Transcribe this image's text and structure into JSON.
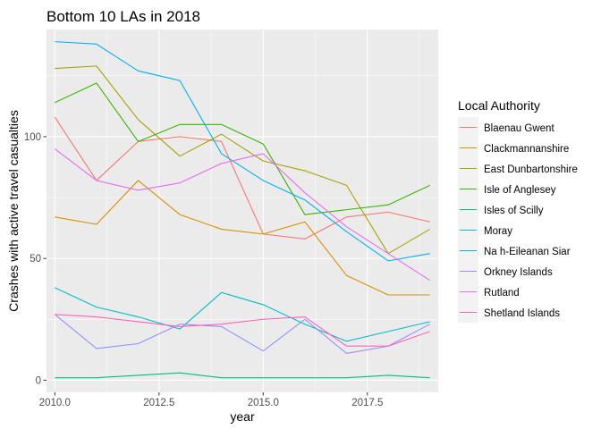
{
  "chart_data": {
    "type": "line",
    "title": "Bottom 10 LAs in 2018",
    "xlabel": "year",
    "ylabel": "Crashes with active travel casualties",
    "xlim": [
      2009.8,
      2019.2
    ],
    "ylim": [
      -5,
      144
    ],
    "x_ticks": [
      2010,
      2012.5,
      2015,
      2017.5
    ],
    "x_tick_labels": [
      "2010.0",
      "2012.5",
      "2015.0",
      "2017.5"
    ],
    "y_ticks": [
      0,
      50,
      100
    ],
    "y_tick_labels": [
      "0",
      "50",
      "100"
    ],
    "grid": true,
    "legend_title": "Local Authority",
    "legend_position": "right",
    "x": [
      2010,
      2011,
      2012,
      2013,
      2014,
      2015,
      2016,
      2017,
      2018,
      2019
    ],
    "series": [
      {
        "name": "Blaenau Gwent",
        "color": "#F8766D",
        "values": [
          108,
          82,
          98,
          100,
          98,
          60,
          58,
          67,
          69,
          65
        ]
      },
      {
        "name": "Clackmannanshire",
        "color": "#D89000",
        "values": [
          67,
          64,
          82,
          68,
          62,
          60,
          65,
          43,
          35,
          35
        ]
      },
      {
        "name": "East Dunbartonshire",
        "color": "#A3A500",
        "values": [
          128,
          129,
          107,
          92,
          101,
          90,
          86,
          80,
          52,
          62
        ]
      },
      {
        "name": "Isle of Anglesey",
        "color": "#39B600",
        "values": [
          114,
          122,
          98,
          105,
          105,
          97,
          68,
          70,
          72,
          80
        ]
      },
      {
        "name": "Isles of Scilly",
        "color": "#00BF7D",
        "values": [
          1,
          1,
          2,
          3,
          1,
          1,
          1,
          1,
          2,
          1
        ]
      },
      {
        "name": "Moray",
        "color": "#00BFC4",
        "values": [
          38,
          30,
          26,
          21,
          36,
          31,
          23,
          16,
          20,
          24
        ]
      },
      {
        "name": "Na h-Eileanan Siar",
        "color": "#00B0F6",
        "values": [
          139,
          138,
          127,
          123,
          93,
          82,
          74,
          61,
          49,
          52
        ]
      },
      {
        "name": "Orkney Islands",
        "color": "#9590FF",
        "values": [
          27,
          13,
          15,
          23,
          22,
          12,
          25,
          11,
          14,
          23
        ]
      },
      {
        "name": "Rutland",
        "color": "#E76BF3",
        "values": [
          95,
          82,
          78,
          81,
          89,
          93,
          77,
          63,
          52,
          41
        ]
      },
      {
        "name": "Shetland Islands",
        "color": "#FF62BC",
        "values": [
          27,
          26,
          24,
          22,
          23,
          25,
          26,
          14,
          14,
          20
        ]
      }
    ]
  }
}
